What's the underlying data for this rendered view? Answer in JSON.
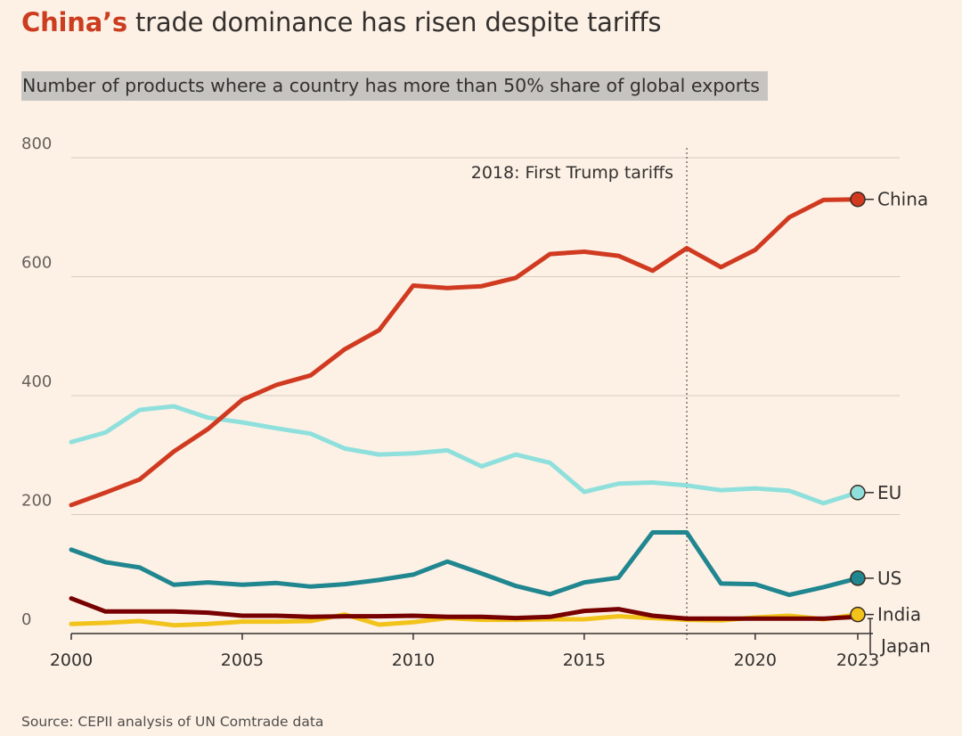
{
  "header": {
    "title_highlight": "China’s",
    "title_rest": " trade dominance has risen despite tariffs",
    "subtitle": "Number of products where a country has more than 50% share of global exports"
  },
  "footer": {
    "source": "Source: CEPII analysis of UN Comtrade data"
  },
  "chart_data": {
    "type": "line",
    "title": "China’s trade dominance has risen despite tariffs",
    "subtitle": "Number of products where a country has more than 50% share of global exports",
    "xlim": [
      2000,
      2023
    ],
    "ylim": [
      0,
      800
    ],
    "x_ticks": [
      2000,
      2005,
      2010,
      2015,
      2020,
      2023
    ],
    "y_ticks": [
      0,
      200,
      400,
      600,
      800
    ],
    "grid": "horizontal",
    "x": [
      2000,
      2001,
      2002,
      2003,
      2004,
      2005,
      2006,
      2007,
      2008,
      2009,
      2010,
      2011,
      2012,
      2013,
      2014,
      2015,
      2016,
      2017,
      2018,
      2019,
      2020,
      2021,
      2022,
      2023
    ],
    "series": [
      {
        "name": "China",
        "color": "#d03a20",
        "end_marker": true,
        "values": [
          216,
          237,
          259,
          306,
          344,
          393,
          418,
          434,
          478,
          510,
          585,
          581,
          584,
          598,
          638,
          642,
          635,
          610,
          648,
          616,
          645,
          700,
          729,
          730
        ]
      },
      {
        "name": "EU",
        "color": "#8fe0dc",
        "end_marker": true,
        "values": [
          322,
          338,
          376,
          382,
          363,
          355,
          345,
          336,
          311,
          301,
          303,
          308,
          281,
          301,
          287,
          238,
          252,
          254,
          249,
          241,
          244,
          240,
          219,
          237
        ]
      },
      {
        "name": "US",
        "color": "#20868f",
        "end_marker": true,
        "values": [
          141,
          120,
          111,
          82,
          86,
          82,
          85,
          79,
          83,
          90,
          99,
          121,
          101,
          80,
          66,
          86,
          94,
          170,
          170,
          84,
          83,
          65,
          78,
          93
        ]
      },
      {
        "name": "Japan",
        "color": "#770000",
        "end_marker": false,
        "values": [
          59,
          37,
          37,
          37,
          35,
          30,
          30,
          28,
          29,
          29,
          30,
          28,
          28,
          26,
          28,
          38,
          41,
          30,
          25,
          25,
          25,
          25,
          25,
          28
        ]
      },
      {
        "name": "India",
        "color": "#f2c31b",
        "end_marker": true,
        "values": [
          16,
          18,
          21,
          14,
          16,
          20,
          20,
          21,
          32,
          15,
          19,
          26,
          23,
          23,
          24,
          24,
          29,
          26,
          23,
          22,
          27,
          30,
          24,
          32
        ]
      }
    ],
    "annotations": [
      {
        "x": 2018,
        "label": "2018: First Trump tariffs",
        "style": "dotted-vertical-line"
      }
    ]
  }
}
